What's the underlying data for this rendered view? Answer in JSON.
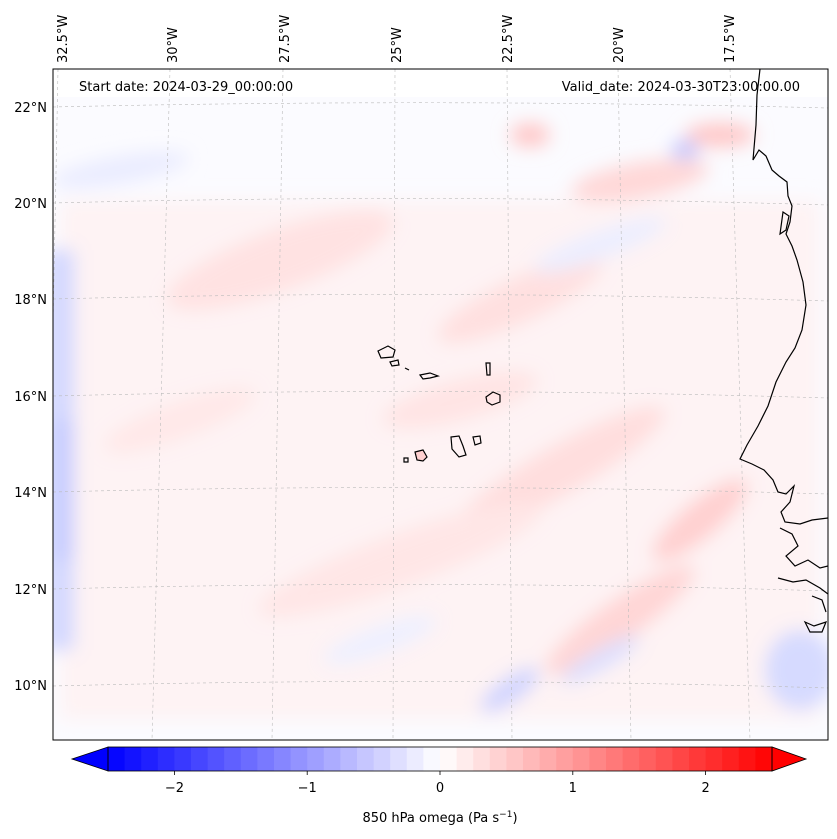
{
  "map": {
    "start_date": "Start date: 2024-03-29_00:00:00",
    "valid_date": "Valid_date: 2024-03-30T23:00:00.00",
    "lon_labels": [
      "32.5°W",
      "30°W",
      "27.5°W",
      "25°W",
      "22.5°W",
      "20°W",
      "17.5°W"
    ],
    "lat_labels": [
      "22°N",
      "20°N",
      "18°N",
      "16°N",
      "14°N",
      "12°N",
      "10°N"
    ],
    "gridlines": true,
    "land_outline_color": "#000000"
  },
  "colorbar": {
    "label_prefix": "850 hPa omega (Pa s",
    "label_sup": "−1",
    "label_suffix": ")",
    "ticks": [
      "−2",
      "−1",
      "0",
      "1",
      "2"
    ],
    "tick_values": [
      -2,
      -1,
      0,
      1,
      2
    ],
    "range": [
      -2.5,
      2.5
    ],
    "extend": "both",
    "colormap": "bwr",
    "low_color": "#0000ff",
    "mid_color": "#ffffff",
    "high_color": "#ff0000"
  }
}
